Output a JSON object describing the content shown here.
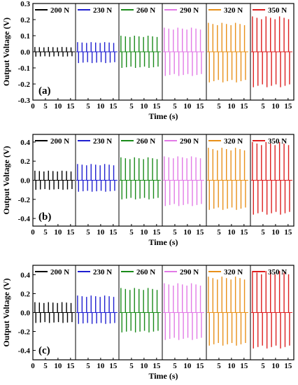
{
  "chart_data": [
    {
      "type": "line",
      "panel_label": "(a)",
      "xlabel": "Time (s)",
      "ylabel": "Output Voltage (V)",
      "ylim": [
        -0.3,
        0.3
      ],
      "yticks": [
        -0.3,
        -0.2,
        -0.1,
        0.0,
        0.1,
        0.2,
        0.3
      ],
      "ytick_labels": [
        "-0.3",
        "-0.2",
        "-0.1",
        "0.0",
        "0.1",
        "0.2",
        "0.3"
      ],
      "xlim_per_segment": [
        0,
        17
      ],
      "xtick_labels": [
        [
          "0",
          "5",
          "10",
          "15"
        ],
        [
          "5",
          "10",
          "15"
        ],
        [
          "5",
          "10",
          "15"
        ],
        [
          "5",
          "10",
          "15"
        ],
        [
          "5",
          "10",
          "15"
        ],
        [
          "5",
          "10",
          "15"
        ]
      ],
      "xticks_per_segment": [
        [
          0,
          5,
          10,
          15
        ],
        [
          5,
          10,
          15
        ],
        [
          5,
          10,
          15
        ],
        [
          5,
          10,
          15
        ],
        [
          5,
          10,
          15
        ],
        [
          5,
          10,
          15
        ]
      ],
      "legend_placement": "top",
      "series": [
        {
          "name": "200 N",
          "color": "#000000",
          "peaks": 9,
          "period_s": 1.8,
          "pos_peak": 0.03,
          "neg_peak": -0.03
        },
        {
          "name": "230 N",
          "color": "#1f1fd0",
          "peaks": 9,
          "period_s": 1.8,
          "pos_peak": 0.06,
          "neg_peak": -0.07
        },
        {
          "name": "260 N",
          "color": "#1a8a1a",
          "peaks": 9,
          "period_s": 1.8,
          "pos_peak": 0.1,
          "neg_peak": -0.1
        },
        {
          "name": "290 N",
          "color": "#e27ae6",
          "peaks": 9,
          "period_s": 1.8,
          "pos_peak": 0.15,
          "neg_peak": -0.15
        },
        {
          "name": "320 N",
          "color": "#e8901a",
          "peaks": 9,
          "period_s": 1.8,
          "pos_peak": 0.18,
          "neg_peak": -0.19
        },
        {
          "name": "350 N",
          "color": "#dd1f1f",
          "peaks": 9,
          "period_s": 1.8,
          "pos_peak": 0.22,
          "neg_peak": -0.22
        }
      ]
    },
    {
      "type": "line",
      "panel_label": "(b)",
      "xlabel": "Time (s)",
      "ylabel": "Output Voltage (V)",
      "ylim": [
        -0.48,
        0.48
      ],
      "yticks": [
        -0.4,
        -0.2,
        0.0,
        0.2,
        0.4
      ],
      "ytick_labels": [
        "-0.4",
        "-0.2",
        "0.0",
        "0.2",
        "0.4"
      ],
      "xlim_per_segment": [
        0,
        17
      ],
      "xtick_labels": [
        [
          "0",
          "5",
          "10",
          "15"
        ],
        [
          "5",
          "10",
          "15"
        ],
        [
          "5",
          "10",
          "15"
        ],
        [
          "5",
          "10",
          "15"
        ],
        [
          "5",
          "10",
          "15"
        ],
        [
          "5",
          "10",
          "15"
        ]
      ],
      "xticks_per_segment": [
        [
          0,
          5,
          10,
          15
        ],
        [
          5,
          10,
          15
        ],
        [
          5,
          10,
          15
        ],
        [
          5,
          10,
          15
        ],
        [
          5,
          10,
          15
        ],
        [
          5,
          10,
          15
        ]
      ],
      "legend_placement": "top",
      "series": [
        {
          "name": "200 N",
          "color": "#000000",
          "peaks": 9,
          "period_s": 1.8,
          "pos_peak": 0.1,
          "neg_peak": -0.1
        },
        {
          "name": "230 N",
          "color": "#1f1fd0",
          "peaks": 9,
          "period_s": 1.8,
          "pos_peak": 0.17,
          "neg_peak": -0.12
        },
        {
          "name": "260 N",
          "color": "#1a8a1a",
          "peaks": 9,
          "period_s": 1.8,
          "pos_peak": 0.24,
          "neg_peak": -0.2
        },
        {
          "name": "290 N",
          "color": "#e27ae6",
          "peaks": 9,
          "period_s": 1.8,
          "pos_peak": 0.25,
          "neg_peak": -0.27
        },
        {
          "name": "320 N",
          "color": "#e8901a",
          "peaks": 9,
          "period_s": 1.8,
          "pos_peak": 0.34,
          "neg_peak": -0.31
        },
        {
          "name": "350 N",
          "color": "#dd1f1f",
          "peaks": 9,
          "period_s": 1.8,
          "pos_peak": 0.4,
          "neg_peak": -0.36
        }
      ]
    },
    {
      "type": "line",
      "panel_label": "(c)",
      "xlabel": "Time (s)",
      "ylabel": "Output Voltage (V)",
      "ylim": [
        -0.5,
        0.5
      ],
      "yticks": [
        -0.4,
        -0.2,
        0.0,
        0.2,
        0.4
      ],
      "ytick_labels": [
        "-0.4",
        "-0.2",
        "0.0",
        "0.2",
        "0.4"
      ],
      "xlim_per_segment": [
        0,
        17
      ],
      "xtick_labels": [
        [
          "0",
          "5",
          "10",
          "15"
        ],
        [
          "5",
          "10",
          "15"
        ],
        [
          "5",
          "10",
          "15"
        ],
        [
          "5",
          "10",
          "15"
        ],
        [
          "5",
          "10",
          "15"
        ],
        [
          "5",
          "10",
          "15"
        ]
      ],
      "xticks_per_segment": [
        [
          0,
          5,
          10,
          15
        ],
        [
          5,
          10,
          15
        ],
        [
          5,
          10,
          15
        ],
        [
          5,
          10,
          15
        ],
        [
          5,
          10,
          15
        ],
        [
          5,
          10,
          15
        ]
      ],
      "legend_placement": "top",
      "series": [
        {
          "name": "200 N",
          "color": "#000000",
          "peaks": 9,
          "period_s": 1.8,
          "pos_peak": 0.11,
          "neg_peak": -0.11
        },
        {
          "name": "230 N",
          "color": "#1f1fd0",
          "peaks": 9,
          "period_s": 1.8,
          "pos_peak": 0.18,
          "neg_peak": -0.12
        },
        {
          "name": "260 N",
          "color": "#1a8a1a",
          "peaks": 9,
          "period_s": 1.8,
          "pos_peak": 0.26,
          "neg_peak": -0.21
        },
        {
          "name": "290 N",
          "color": "#e27ae6",
          "peaks": 9,
          "period_s": 1.8,
          "pos_peak": 0.31,
          "neg_peak": -0.29
        },
        {
          "name": "320 N",
          "color": "#e8901a",
          "peaks": 9,
          "period_s": 1.8,
          "pos_peak": 0.38,
          "neg_peak": -0.35
        },
        {
          "name": "350 N",
          "color": "#dd1f1f",
          "peaks": 9,
          "period_s": 1.8,
          "pos_peak": 0.44,
          "neg_peak": -0.38
        }
      ]
    }
  ]
}
